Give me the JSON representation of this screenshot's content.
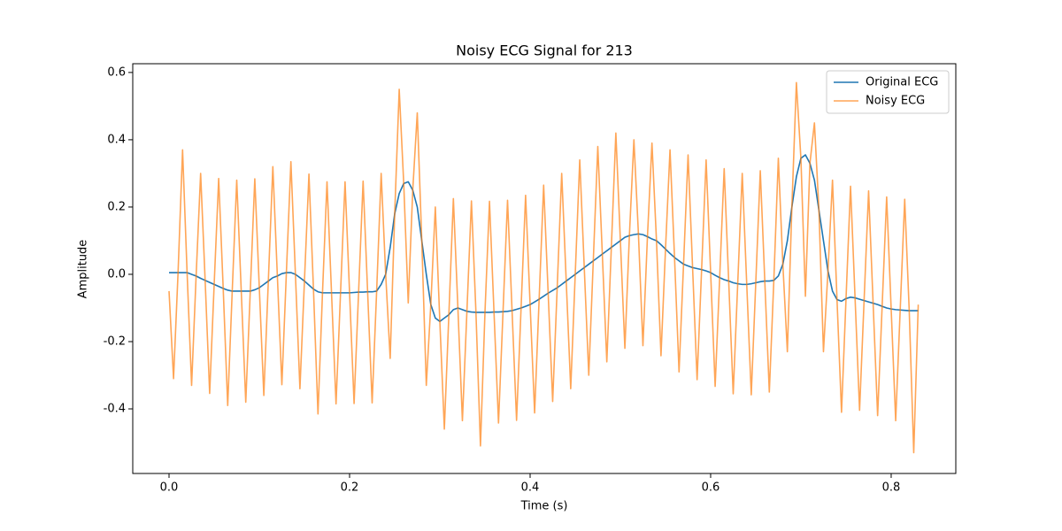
{
  "chart_data": {
    "type": "line",
    "title": "Noisy ECG Signal for 213",
    "xlabel": "Time (s)",
    "ylabel": "Amplitude",
    "x": [
      0,
      0.005,
      0.01,
      0.015,
      0.02,
      0.025,
      0.03,
      0.035,
      0.04,
      0.045,
      0.05,
      0.055,
      0.06,
      0.065,
      0.07,
      0.075,
      0.08,
      0.085,
      0.09,
      0.095,
      0.1,
      0.105,
      0.11,
      0.115,
      0.12,
      0.125,
      0.13,
      0.135,
      0.14,
      0.145,
      0.15,
      0.155,
      0.16,
      0.165,
      0.17,
      0.175,
      0.18,
      0.185,
      0.19,
      0.195,
      0.2,
      0.205,
      0.21,
      0.215,
      0.22,
      0.225,
      0.23,
      0.235,
      0.24,
      0.245,
      0.25,
      0.255,
      0.26,
      0.265,
      0.27,
      0.275,
      0.28,
      0.285,
      0.29,
      0.295,
      0.3,
      0.305,
      0.31,
      0.315,
      0.32,
      0.325,
      0.33,
      0.335,
      0.34,
      0.345,
      0.35,
      0.355,
      0.36,
      0.365,
      0.37,
      0.375,
      0.38,
      0.385,
      0.39,
      0.395,
      0.4,
      0.405,
      0.41,
      0.415,
      0.42,
      0.425,
      0.43,
      0.435,
      0.44,
      0.445,
      0.45,
      0.455,
      0.46,
      0.465,
      0.47,
      0.475,
      0.48,
      0.485,
      0.49,
      0.495,
      0.5,
      0.505,
      0.51,
      0.515,
      0.52,
      0.525,
      0.53,
      0.535,
      0.54,
      0.545,
      0.55,
      0.555,
      0.56,
      0.565,
      0.57,
      0.575,
      0.58,
      0.585,
      0.59,
      0.595,
      0.6,
      0.605,
      0.61,
      0.615,
      0.62,
      0.625,
      0.63,
      0.635,
      0.64,
      0.645,
      0.65,
      0.655,
      0.66,
      0.665,
      0.67,
      0.675,
      0.68,
      0.685,
      0.69,
      0.695,
      0.7,
      0.705,
      0.71,
      0.715,
      0.72,
      0.725,
      0.73,
      0.735,
      0.74,
      0.745,
      0.75,
      0.755,
      0.76,
      0.765,
      0.77,
      0.775,
      0.78,
      0.785,
      0.79,
      0.795,
      0.8,
      0.805,
      0.81,
      0.815,
      0.82,
      0.825,
      0.83
    ],
    "series": [
      {
        "name": "Original ECG",
        "color": "#1f77b4",
        "values": [
          0.005,
          0.005,
          0.005,
          0.005,
          0.005,
          0,
          -0.005,
          -0.012,
          -0.018,
          -0.024,
          -0.03,
          -0.036,
          -0.042,
          -0.047,
          -0.05,
          -0.05,
          -0.05,
          -0.05,
          -0.05,
          -0.046,
          -0.04,
          -0.03,
          -0.02,
          -0.01,
          -0.005,
          0.002,
          0.005,
          0.005,
          0,
          -0.01,
          -0.02,
          -0.032,
          -0.044,
          -0.052,
          -0.055,
          -0.055,
          -0.055,
          -0.055,
          -0.055,
          -0.055,
          -0.055,
          -0.054,
          -0.053,
          -0.053,
          -0.052,
          -0.052,
          -0.05,
          -0.03,
          0,
          0.08,
          0.18,
          0.24,
          0.27,
          0.275,
          0.25,
          0.2,
          0.1,
          0,
          -0.09,
          -0.13,
          -0.14,
          -0.13,
          -0.12,
          -0.105,
          -0.1,
          -0.105,
          -0.11,
          -0.112,
          -0.113,
          -0.113,
          -0.113,
          -0.113,
          -0.112,
          -0.112,
          -0.111,
          -0.11,
          -0.108,
          -0.104,
          -0.1,
          -0.095,
          -0.09,
          -0.082,
          -0.074,
          -0.065,
          -0.056,
          -0.048,
          -0.04,
          -0.03,
          -0.02,
          -0.01,
          0,
          0.01,
          0.02,
          0.03,
          0.04,
          0.05,
          0.06,
          0.07,
          0.08,
          0.09,
          0.1,
          0.11,
          0.115,
          0.118,
          0.12,
          0.118,
          0.112,
          0.105,
          0.1,
          0.088,
          0.075,
          0.062,
          0.05,
          0.04,
          0.03,
          0.025,
          0.02,
          0.017,
          0.014,
          0.01,
          0.005,
          -0.003,
          -0.01,
          -0.016,
          -0.02,
          -0.025,
          -0.028,
          -0.03,
          -0.03,
          -0.028,
          -0.025,
          -0.022,
          -0.02,
          -0.02,
          -0.018,
          -0.005,
          0.03,
          0.1,
          0.2,
          0.29,
          0.345,
          0.355,
          0.33,
          0.28,
          0.19,
          0.1,
          0.01,
          -0.05,
          -0.075,
          -0.08,
          -0.072,
          -0.068,
          -0.07,
          -0.074,
          -0.078,
          -0.082,
          -0.086,
          -0.09,
          -0.095,
          -0.1,
          -0.103,
          -0.105,
          -0.106,
          -0.107,
          -0.108,
          -0.108,
          -0.108
        ]
      },
      {
        "name": "Noisy ECG",
        "color": "#ff7f0e",
        "values": [
          -0.05,
          -0.31,
          0.005,
          0.37,
          0.005,
          -0.33,
          -0.005,
          0.3,
          -0.018,
          -0.354,
          -0.03,
          0.285,
          -0.042,
          -0.39,
          -0.05,
          0.28,
          -0.05,
          -0.38,
          -0.05,
          0.284,
          -0.04,
          -0.36,
          -0.02,
          0.32,
          -0.005,
          -0.328,
          0.005,
          0.335,
          0,
          -0.34,
          -0.02,
          0.298,
          -0.044,
          -0.415,
          -0.055,
          0.275,
          -0.055,
          -0.385,
          -0.055,
          0.275,
          -0.055,
          -0.384,
          -0.053,
          0.277,
          -0.052,
          -0.382,
          -0.05,
          0.3,
          0,
          -0.25,
          0.18,
          0.55,
          0.27,
          -0.085,
          0.25,
          0.48,
          0.1,
          -0.33,
          -0.09,
          0.2,
          -0.14,
          -0.46,
          -0.12,
          0.225,
          -0.1,
          -0.435,
          -0.11,
          0.218,
          -0.113,
          -0.51,
          -0.113,
          0.217,
          -0.112,
          -0.442,
          -0.111,
          0.22,
          -0.108,
          -0.434,
          -0.1,
          0.235,
          -0.09,
          -0.412,
          -0.074,
          0.265,
          -0.056,
          -0.378,
          -0.04,
          0.3,
          -0.02,
          -0.34,
          0,
          0.34,
          0.02,
          -0.3,
          0.04,
          0.38,
          0.06,
          -0.26,
          0.08,
          0.42,
          0.1,
          -0.22,
          0.115,
          0.4,
          0.12,
          -0.212,
          0.112,
          0.39,
          0.1,
          -0.242,
          0.075,
          0.37,
          0.05,
          -0.29,
          0.03,
          0.355,
          0.02,
          -0.313,
          0.014,
          0.34,
          0.005,
          -0.333,
          -0.01,
          0.314,
          -0.02,
          -0.355,
          -0.028,
          0.3,
          -0.03,
          -0.358,
          -0.025,
          0.308,
          -0.02,
          -0.35,
          -0.018,
          0.345,
          0.03,
          -0.23,
          0.2,
          0.57,
          0.345,
          -0.065,
          0.33,
          0.45,
          0.19,
          -0.23,
          0.01,
          0.28,
          -0.075,
          -0.41,
          -0.072,
          0.262,
          -0.07,
          -0.404,
          -0.078,
          0.248,
          -0.086,
          -0.42,
          -0.095,
          0.23,
          -0.103,
          -0.435,
          -0.106,
          0.223,
          -0.108,
          -0.53,
          -0.09
        ]
      }
    ],
    "xlim": [
      -0.0402,
      0.8716
    ],
    "xticks": [
      {
        "value": 0,
        "label": "0.0"
      },
      0.2,
      0.4,
      0.6,
      0.8
    ],
    "ylim": [
      -0.592,
      0.626
    ],
    "yticks": [
      -0.4,
      -0.2,
      {
        "value": 0,
        "label": "0.0"
      },
      0.2,
      0.4,
      0.6
    ],
    "legend": "upper right",
    "grid": false
  }
}
